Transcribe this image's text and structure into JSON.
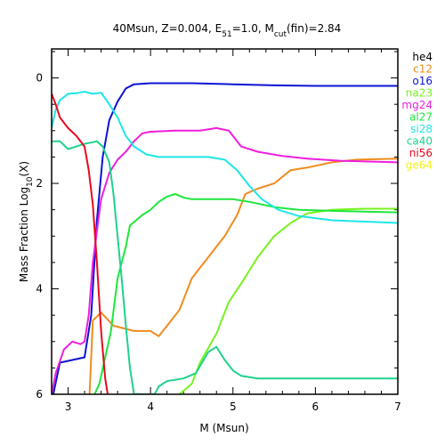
{
  "chart_data": {
    "type": "line",
    "title": {
      "prefix": "40Msun, Z=0.004, E",
      "sub1": "51",
      "mid": "=1.0, M",
      "sub2": "cut",
      "suffix": "(fin)=2.84"
    },
    "xlabel": "M (Msun)",
    "ylabel": {
      "prefix": "Mass Fraction Log",
      "sub": "10",
      "suffix": "(X)"
    },
    "xlim": [
      2.8,
      7.0
    ],
    "ylim": [
      -6.0,
      0.55
    ],
    "xticks": [
      3,
      4,
      5,
      6,
      7
    ],
    "yticks": [
      0,
      -2,
      -4,
      -6
    ],
    "yticklabels": [
      "0",
      "2",
      "4",
      "6"
    ],
    "series": [
      {
        "name": "he4",
        "color": "#000000",
        "points": []
      },
      {
        "name": "c12",
        "color": "#f08c1e",
        "points": [
          [
            3.26,
            -6.0
          ],
          [
            3.3,
            -4.6
          ],
          [
            3.4,
            -4.45
          ],
          [
            3.55,
            -4.7
          ],
          [
            3.8,
            -4.8
          ],
          [
            4.0,
            -4.8
          ],
          [
            4.1,
            -4.9
          ],
          [
            4.2,
            -4.7
          ],
          [
            4.35,
            -4.4
          ],
          [
            4.5,
            -3.8
          ],
          [
            4.7,
            -3.4
          ],
          [
            4.9,
            -3.0
          ],
          [
            5.05,
            -2.6
          ],
          [
            5.15,
            -2.2
          ],
          [
            5.3,
            -2.1
          ],
          [
            5.5,
            -2.0
          ],
          [
            5.7,
            -1.75
          ],
          [
            5.9,
            -1.7
          ],
          [
            6.2,
            -1.6
          ],
          [
            6.5,
            -1.55
          ],
          [
            7.0,
            -1.53
          ]
        ]
      },
      {
        "name": "o16",
        "color": "#0a14d2",
        "points": [
          [
            2.82,
            -6.0
          ],
          [
            2.9,
            -5.4
          ],
          [
            3.05,
            -5.35
          ],
          [
            3.2,
            -5.3
          ],
          [
            3.28,
            -4.5
          ],
          [
            3.35,
            -2.7
          ],
          [
            3.42,
            -1.5
          ],
          [
            3.5,
            -0.8
          ],
          [
            3.6,
            -0.45
          ],
          [
            3.7,
            -0.2
          ],
          [
            3.8,
            -0.12
          ],
          [
            4.0,
            -0.1
          ],
          [
            4.5,
            -0.1
          ],
          [
            5.0,
            -0.12
          ],
          [
            5.5,
            -0.14
          ],
          [
            6.0,
            -0.15
          ],
          [
            7.0,
            -0.15
          ]
        ]
      },
      {
        "name": "na23",
        "color": "#78f21e",
        "points": [
          [
            4.35,
            -6.0
          ],
          [
            4.5,
            -5.8
          ],
          [
            4.6,
            -5.4
          ],
          [
            4.8,
            -4.85
          ],
          [
            4.95,
            -4.25
          ],
          [
            5.1,
            -3.9
          ],
          [
            5.3,
            -3.4
          ],
          [
            5.5,
            -3.0
          ],
          [
            5.7,
            -2.75
          ],
          [
            5.9,
            -2.57
          ],
          [
            6.2,
            -2.5
          ],
          [
            6.6,
            -2.48
          ],
          [
            7.0,
            -2.48
          ]
        ]
      },
      {
        "name": "mg24",
        "color": "#f01edc",
        "points": [
          [
            2.8,
            -6.0
          ],
          [
            2.85,
            -5.6
          ],
          [
            2.95,
            -5.15
          ],
          [
            3.05,
            -5.0
          ],
          [
            3.15,
            -5.05
          ],
          [
            3.2,
            -5.0
          ],
          [
            3.25,
            -4.5
          ],
          [
            3.3,
            -3.5
          ],
          [
            3.4,
            -2.3
          ],
          [
            3.5,
            -1.8
          ],
          [
            3.6,
            -1.55
          ],
          [
            3.7,
            -1.4
          ],
          [
            3.8,
            -1.2
          ],
          [
            3.9,
            -1.05
          ],
          [
            4.0,
            -1.02
          ],
          [
            4.3,
            -1.0
          ],
          [
            4.6,
            -1.0
          ],
          [
            4.8,
            -0.95
          ],
          [
            4.95,
            -1.0
          ],
          [
            5.1,
            -1.3
          ],
          [
            5.3,
            -1.4
          ],
          [
            5.6,
            -1.48
          ],
          [
            5.9,
            -1.53
          ],
          [
            6.3,
            -1.57
          ],
          [
            7.0,
            -1.6
          ]
        ]
      },
      {
        "name": "al27",
        "color": "#1ee63c",
        "points": [
          [
            3.32,
            -6.0
          ],
          [
            3.38,
            -5.8
          ],
          [
            3.45,
            -5.3
          ],
          [
            3.52,
            -4.8
          ],
          [
            3.6,
            -3.8
          ],
          [
            3.7,
            -3.2
          ],
          [
            3.75,
            -2.8
          ],
          [
            3.9,
            -2.6
          ],
          [
            4.0,
            -2.5
          ],
          [
            4.1,
            -2.35
          ],
          [
            4.2,
            -2.25
          ],
          [
            4.3,
            -2.2
          ],
          [
            4.4,
            -2.27
          ],
          [
            4.5,
            -2.3
          ],
          [
            4.8,
            -2.3
          ],
          [
            5.0,
            -2.3
          ],
          [
            5.2,
            -2.35
          ],
          [
            5.5,
            -2.45
          ],
          [
            5.8,
            -2.5
          ],
          [
            6.2,
            -2.52
          ],
          [
            7.0,
            -2.55
          ]
        ]
      },
      {
        "name": "si28",
        "color": "#1ee6e6",
        "points": [
          [
            2.8,
            -0.95
          ],
          [
            2.85,
            -0.6
          ],
          [
            2.9,
            -0.42
          ],
          [
            3.0,
            -0.3
          ],
          [
            3.1,
            -0.29
          ],
          [
            3.2,
            -0.26
          ],
          [
            3.3,
            -0.3
          ],
          [
            3.4,
            -0.28
          ],
          [
            3.5,
            -0.5
          ],
          [
            3.6,
            -0.75
          ],
          [
            3.7,
            -1.1
          ],
          [
            3.8,
            -1.3
          ],
          [
            3.95,
            -1.45
          ],
          [
            4.1,
            -1.5
          ],
          [
            4.4,
            -1.5
          ],
          [
            4.7,
            -1.5
          ],
          [
            4.9,
            -1.55
          ],
          [
            5.05,
            -1.75
          ],
          [
            5.2,
            -2.05
          ],
          [
            5.35,
            -2.3
          ],
          [
            5.55,
            -2.5
          ],
          [
            5.8,
            -2.62
          ],
          [
            6.2,
            -2.7
          ],
          [
            7.0,
            -2.75
          ]
        ]
      },
      {
        "name": "ca40",
        "color": "#1ed28c",
        "points": [
          [
            2.8,
            -1.2
          ],
          [
            2.9,
            -1.2
          ],
          [
            3.0,
            -1.35
          ],
          [
            3.1,
            -1.3
          ],
          [
            3.2,
            -1.25
          ],
          [
            3.3,
            -1.22
          ],
          [
            3.35,
            -1.2
          ],
          [
            3.42,
            -1.3
          ],
          [
            3.5,
            -1.6
          ],
          [
            3.55,
            -2.2
          ],
          [
            3.6,
            -3.0
          ],
          [
            3.65,
            -3.8
          ],
          [
            3.7,
            -4.7
          ],
          [
            3.75,
            -5.5
          ],
          [
            3.8,
            -6.0
          ],
          [
            4.05,
            -6.0
          ],
          [
            4.1,
            -5.85
          ],
          [
            4.2,
            -5.75
          ],
          [
            4.4,
            -5.7
          ],
          [
            4.55,
            -5.6
          ],
          [
            4.7,
            -5.2
          ],
          [
            4.8,
            -5.1
          ],
          [
            4.9,
            -5.35
          ],
          [
            5.0,
            -5.55
          ],
          [
            5.1,
            -5.65
          ],
          [
            5.3,
            -5.7
          ],
          [
            6.0,
            -5.7
          ],
          [
            7.0,
            -5.7
          ]
        ]
      },
      {
        "name": "ni56",
        "color": "#e60a1e",
        "points": [
          [
            2.8,
            -0.3
          ],
          [
            2.85,
            -0.5
          ],
          [
            2.9,
            -0.75
          ],
          [
            3.0,
            -0.95
          ],
          [
            3.1,
            -1.1
          ],
          [
            3.2,
            -1.3
          ],
          [
            3.25,
            -1.75
          ],
          [
            3.3,
            -2.4
          ],
          [
            3.35,
            -3.5
          ],
          [
            3.4,
            -4.8
          ],
          [
            3.45,
            -5.7
          ],
          [
            3.48,
            -6.0
          ]
        ]
      },
      {
        "name": "ge64",
        "color": "#f0f01e",
        "points": []
      }
    ]
  }
}
